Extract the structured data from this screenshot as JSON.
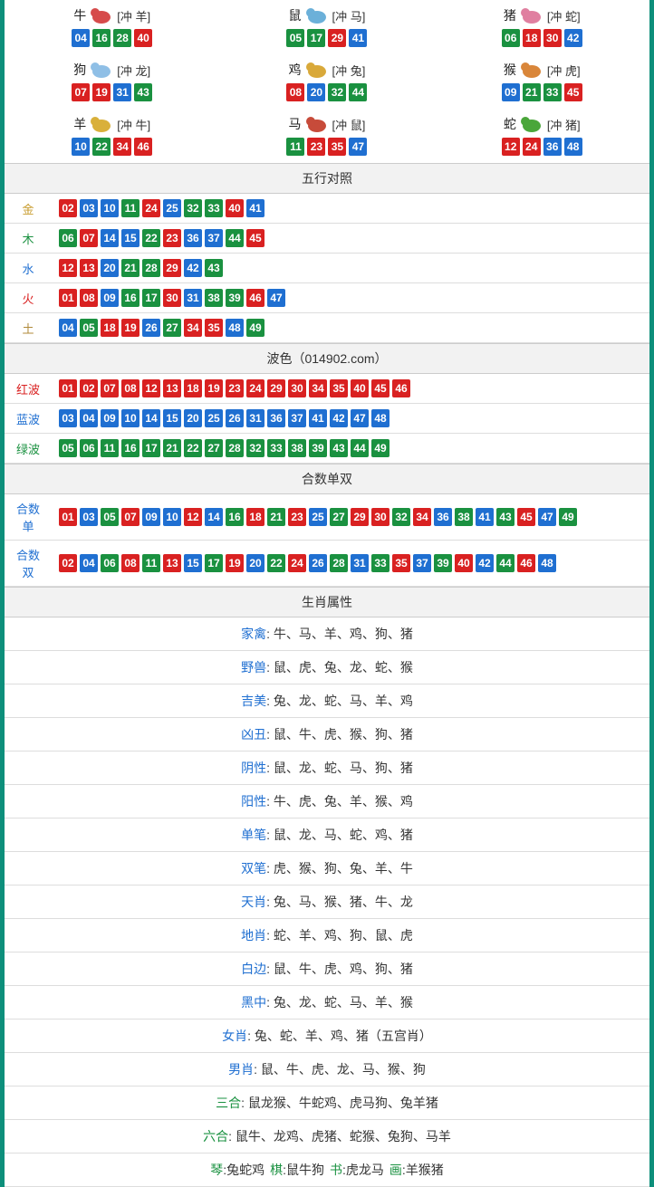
{
  "colors": {
    "red": "#d92121",
    "blue": "#1f6fd1",
    "green": "#1a9140",
    "header_bg": "#f2f2f2",
    "border": "#ccc",
    "page_border": "#0d8f7b"
  },
  "zodiac": [
    {
      "name": "牛",
      "clash": "[冲 羊]",
      "icon_color": "#d64b4b",
      "nums": [
        {
          "v": "04",
          "c": "blue"
        },
        {
          "v": "16",
          "c": "green"
        },
        {
          "v": "28",
          "c": "green"
        },
        {
          "v": "40",
          "c": "red"
        }
      ]
    },
    {
      "name": "鼠",
      "clash": "[冲 马]",
      "icon_color": "#6bb0d9",
      "nums": [
        {
          "v": "05",
          "c": "green"
        },
        {
          "v": "17",
          "c": "green"
        },
        {
          "v": "29",
          "c": "red"
        },
        {
          "v": "41",
          "c": "blue"
        }
      ]
    },
    {
      "name": "猪",
      "clash": "[冲 蛇]",
      "icon_color": "#e07fa0",
      "nums": [
        {
          "v": "06",
          "c": "green"
        },
        {
          "v": "18",
          "c": "red"
        },
        {
          "v": "30",
          "c": "red"
        },
        {
          "v": "42",
          "c": "blue"
        }
      ]
    },
    {
      "name": "狗",
      "clash": "[冲 龙]",
      "icon_color": "#8fbfe6",
      "nums": [
        {
          "v": "07",
          "c": "red"
        },
        {
          "v": "19",
          "c": "red"
        },
        {
          "v": "31",
          "c": "blue"
        },
        {
          "v": "43",
          "c": "green"
        }
      ]
    },
    {
      "name": "鸡",
      "clash": "[冲 兔]",
      "icon_color": "#d9a93a",
      "nums": [
        {
          "v": "08",
          "c": "red"
        },
        {
          "v": "20",
          "c": "blue"
        },
        {
          "v": "32",
          "c": "green"
        },
        {
          "v": "44",
          "c": "green"
        }
      ]
    },
    {
      "name": "猴",
      "clash": "[冲 虎]",
      "icon_color": "#d9863a",
      "nums": [
        {
          "v": "09",
          "c": "blue"
        },
        {
          "v": "21",
          "c": "green"
        },
        {
          "v": "33",
          "c": "green"
        },
        {
          "v": "45",
          "c": "red"
        }
      ]
    },
    {
      "name": "羊",
      "clash": "[冲 牛]",
      "icon_color": "#d9b03a",
      "nums": [
        {
          "v": "10",
          "c": "blue"
        },
        {
          "v": "22",
          "c": "green"
        },
        {
          "v": "34",
          "c": "red"
        },
        {
          "v": "46",
          "c": "red"
        }
      ]
    },
    {
      "name": "马",
      "clash": "[冲 鼠]",
      "icon_color": "#c74b3a",
      "nums": [
        {
          "v": "11",
          "c": "green"
        },
        {
          "v": "23",
          "c": "red"
        },
        {
          "v": "35",
          "c": "red"
        },
        {
          "v": "47",
          "c": "blue"
        }
      ]
    },
    {
      "name": "蛇",
      "clash": "[冲 猪]",
      "icon_color": "#4aa63a",
      "nums": [
        {
          "v": "12",
          "c": "red"
        },
        {
          "v": "24",
          "c": "red"
        },
        {
          "v": "36",
          "c": "blue"
        },
        {
          "v": "48",
          "c": "blue"
        }
      ]
    }
  ],
  "wuxing_header": "五行对照",
  "wuxing": [
    {
      "id": "gold",
      "label": "金",
      "label_class": "lbl-gold",
      "nums": [
        {
          "v": "02",
          "c": "red"
        },
        {
          "v": "03",
          "c": "blue"
        },
        {
          "v": "10",
          "c": "blue"
        },
        {
          "v": "11",
          "c": "green"
        },
        {
          "v": "24",
          "c": "red"
        },
        {
          "v": "25",
          "c": "blue"
        },
        {
          "v": "32",
          "c": "green"
        },
        {
          "v": "33",
          "c": "green"
        },
        {
          "v": "40",
          "c": "red"
        },
        {
          "v": "41",
          "c": "blue"
        }
      ]
    },
    {
      "id": "wood",
      "label": "木",
      "label_class": "lbl-wood",
      "nums": [
        {
          "v": "06",
          "c": "green"
        },
        {
          "v": "07",
          "c": "red"
        },
        {
          "v": "14",
          "c": "blue"
        },
        {
          "v": "15",
          "c": "blue"
        },
        {
          "v": "22",
          "c": "green"
        },
        {
          "v": "23",
          "c": "red"
        },
        {
          "v": "36",
          "c": "blue"
        },
        {
          "v": "37",
          "c": "blue"
        },
        {
          "v": "44",
          "c": "green"
        },
        {
          "v": "45",
          "c": "red"
        }
      ]
    },
    {
      "id": "water",
      "label": "水",
      "label_class": "lbl-water",
      "nums": [
        {
          "v": "12",
          "c": "red"
        },
        {
          "v": "13",
          "c": "red"
        },
        {
          "v": "20",
          "c": "blue"
        },
        {
          "v": "21",
          "c": "green"
        },
        {
          "v": "28",
          "c": "green"
        },
        {
          "v": "29",
          "c": "red"
        },
        {
          "v": "42",
          "c": "blue"
        },
        {
          "v": "43",
          "c": "green"
        }
      ]
    },
    {
      "id": "fire",
      "label": "火",
      "label_class": "lbl-fire",
      "nums": [
        {
          "v": "01",
          "c": "red"
        },
        {
          "v": "08",
          "c": "red"
        },
        {
          "v": "09",
          "c": "blue"
        },
        {
          "v": "16",
          "c": "green"
        },
        {
          "v": "17",
          "c": "green"
        },
        {
          "v": "30",
          "c": "red"
        },
        {
          "v": "31",
          "c": "blue"
        },
        {
          "v": "38",
          "c": "green"
        },
        {
          "v": "39",
          "c": "green"
        },
        {
          "v": "46",
          "c": "red"
        },
        {
          "v": "47",
          "c": "blue"
        }
      ]
    },
    {
      "id": "earth",
      "label": "土",
      "label_class": "lbl-earth",
      "nums": [
        {
          "v": "04",
          "c": "blue"
        },
        {
          "v": "05",
          "c": "green"
        },
        {
          "v": "18",
          "c": "red"
        },
        {
          "v": "19",
          "c": "red"
        },
        {
          "v": "26",
          "c": "blue"
        },
        {
          "v": "27",
          "c": "green"
        },
        {
          "v": "34",
          "c": "red"
        },
        {
          "v": "35",
          "c": "red"
        },
        {
          "v": "48",
          "c": "blue"
        },
        {
          "v": "49",
          "c": "green"
        }
      ]
    }
  ],
  "bose_header": "波色（014902.com）",
  "bose": [
    {
      "id": "red",
      "label": "红波",
      "label_class": "lbl-red",
      "nums": [
        {
          "v": "01",
          "c": "red"
        },
        {
          "v": "02",
          "c": "red"
        },
        {
          "v": "07",
          "c": "red"
        },
        {
          "v": "08",
          "c": "red"
        },
        {
          "v": "12",
          "c": "red"
        },
        {
          "v": "13",
          "c": "red"
        },
        {
          "v": "18",
          "c": "red"
        },
        {
          "v": "19",
          "c": "red"
        },
        {
          "v": "23",
          "c": "red"
        },
        {
          "v": "24",
          "c": "red"
        },
        {
          "v": "29",
          "c": "red"
        },
        {
          "v": "30",
          "c": "red"
        },
        {
          "v": "34",
          "c": "red"
        },
        {
          "v": "35",
          "c": "red"
        },
        {
          "v": "40",
          "c": "red"
        },
        {
          "v": "45",
          "c": "red"
        },
        {
          "v": "46",
          "c": "red"
        }
      ]
    },
    {
      "id": "blue",
      "label": "蓝波",
      "label_class": "lbl-blue",
      "nums": [
        {
          "v": "03",
          "c": "blue"
        },
        {
          "v": "04",
          "c": "blue"
        },
        {
          "v": "09",
          "c": "blue"
        },
        {
          "v": "10",
          "c": "blue"
        },
        {
          "v": "14",
          "c": "blue"
        },
        {
          "v": "15",
          "c": "blue"
        },
        {
          "v": "20",
          "c": "blue"
        },
        {
          "v": "25",
          "c": "blue"
        },
        {
          "v": "26",
          "c": "blue"
        },
        {
          "v": "31",
          "c": "blue"
        },
        {
          "v": "36",
          "c": "blue"
        },
        {
          "v": "37",
          "c": "blue"
        },
        {
          "v": "41",
          "c": "blue"
        },
        {
          "v": "42",
          "c": "blue"
        },
        {
          "v": "47",
          "c": "blue"
        },
        {
          "v": "48",
          "c": "blue"
        }
      ]
    },
    {
      "id": "green",
      "label": "绿波",
      "label_class": "lbl-green",
      "nums": [
        {
          "v": "05",
          "c": "green"
        },
        {
          "v": "06",
          "c": "green"
        },
        {
          "v": "11",
          "c": "green"
        },
        {
          "v": "16",
          "c": "green"
        },
        {
          "v": "17",
          "c": "green"
        },
        {
          "v": "21",
          "c": "green"
        },
        {
          "v": "22",
          "c": "green"
        },
        {
          "v": "27",
          "c": "green"
        },
        {
          "v": "28",
          "c": "green"
        },
        {
          "v": "32",
          "c": "green"
        },
        {
          "v": "33",
          "c": "green"
        },
        {
          "v": "38",
          "c": "green"
        },
        {
          "v": "39",
          "c": "green"
        },
        {
          "v": "43",
          "c": "green"
        },
        {
          "v": "44",
          "c": "green"
        },
        {
          "v": "49",
          "c": "green"
        }
      ]
    }
  ],
  "heshu_header": "合数单双",
  "heshu": [
    {
      "id": "odd",
      "label": "合数单",
      "label_class": "lbl-blue",
      "nums": [
        {
          "v": "01",
          "c": "red"
        },
        {
          "v": "03",
          "c": "blue"
        },
        {
          "v": "05",
          "c": "green"
        },
        {
          "v": "07",
          "c": "red"
        },
        {
          "v": "09",
          "c": "blue"
        },
        {
          "v": "10",
          "c": "blue"
        },
        {
          "v": "12",
          "c": "red"
        },
        {
          "v": "14",
          "c": "blue"
        },
        {
          "v": "16",
          "c": "green"
        },
        {
          "v": "18",
          "c": "red"
        },
        {
          "v": "21",
          "c": "green"
        },
        {
          "v": "23",
          "c": "red"
        },
        {
          "v": "25",
          "c": "blue"
        },
        {
          "v": "27",
          "c": "green"
        },
        {
          "v": "29",
          "c": "red"
        },
        {
          "v": "30",
          "c": "red"
        },
        {
          "v": "32",
          "c": "green"
        },
        {
          "v": "34",
          "c": "red"
        },
        {
          "v": "36",
          "c": "blue"
        },
        {
          "v": "38",
          "c": "green"
        },
        {
          "v": "41",
          "c": "blue"
        },
        {
          "v": "43",
          "c": "green"
        },
        {
          "v": "45",
          "c": "red"
        },
        {
          "v": "47",
          "c": "blue"
        },
        {
          "v": "49",
          "c": "green"
        }
      ]
    },
    {
      "id": "even",
      "label": "合数双",
      "label_class": "lbl-blue",
      "nums": [
        {
          "v": "02",
          "c": "red"
        },
        {
          "v": "04",
          "c": "blue"
        },
        {
          "v": "06",
          "c": "green"
        },
        {
          "v": "08",
          "c": "red"
        },
        {
          "v": "11",
          "c": "green"
        },
        {
          "v": "13",
          "c": "red"
        },
        {
          "v": "15",
          "c": "blue"
        },
        {
          "v": "17",
          "c": "green"
        },
        {
          "v": "19",
          "c": "red"
        },
        {
          "v": "20",
          "c": "blue"
        },
        {
          "v": "22",
          "c": "green"
        },
        {
          "v": "24",
          "c": "red"
        },
        {
          "v": "26",
          "c": "blue"
        },
        {
          "v": "28",
          "c": "green"
        },
        {
          "v": "31",
          "c": "blue"
        },
        {
          "v": "33",
          "c": "green"
        },
        {
          "v": "35",
          "c": "red"
        },
        {
          "v": "37",
          "c": "blue"
        },
        {
          "v": "39",
          "c": "green"
        },
        {
          "v": "40",
          "c": "red"
        },
        {
          "v": "42",
          "c": "blue"
        },
        {
          "v": "44",
          "c": "green"
        },
        {
          "v": "46",
          "c": "red"
        },
        {
          "v": "48",
          "c": "blue"
        }
      ]
    }
  ],
  "shengxiao_header": "生肖属性",
  "attrs": [
    {
      "label": "家禽",
      "value": "牛、马、羊、鸡、狗、猪",
      "cls": ""
    },
    {
      "label": "野兽",
      "value": "鼠、虎、兔、龙、蛇、猴",
      "cls": ""
    },
    {
      "label": "吉美",
      "value": "兔、龙、蛇、马、羊、鸡",
      "cls": ""
    },
    {
      "label": "凶丑",
      "value": "鼠、牛、虎、猴、狗、猪",
      "cls": ""
    },
    {
      "label": "阴性",
      "value": "鼠、龙、蛇、马、狗、猪",
      "cls": ""
    },
    {
      "label": "阳性",
      "value": "牛、虎、兔、羊、猴、鸡",
      "cls": ""
    },
    {
      "label": "单笔",
      "value": "鼠、龙、马、蛇、鸡、猪",
      "cls": ""
    },
    {
      "label": "双笔",
      "value": "虎、猴、狗、兔、羊、牛",
      "cls": ""
    },
    {
      "label": "天肖",
      "value": "兔、马、猴、猪、牛、龙",
      "cls": ""
    },
    {
      "label": "地肖",
      "value": "蛇、羊、鸡、狗、鼠、虎",
      "cls": ""
    },
    {
      "label": "白边",
      "value": "鼠、牛、虎、鸡、狗、猪",
      "cls": ""
    },
    {
      "label": "黑中",
      "value": "兔、龙、蛇、马、羊、猴",
      "cls": ""
    },
    {
      "label": "女肖",
      "value": "兔、蛇、羊、鸡、猪（五宫肖）",
      "cls": ""
    },
    {
      "label": "男肖",
      "value": "鼠、牛、虎、龙、马、猴、狗",
      "cls": ""
    },
    {
      "label": "三合",
      "value": "鼠龙猴、牛蛇鸡、虎马狗、兔羊猪",
      "cls": "green"
    },
    {
      "label": "六合",
      "value": "鼠牛、龙鸡、虎猪、蛇猴、兔狗、马羊",
      "cls": "green"
    }
  ],
  "multi_bottom": [
    {
      "label": "琴",
      "value": "兔蛇鸡"
    },
    {
      "label": "棋",
      "value": "鼠牛狗"
    },
    {
      "label": "书",
      "value": "虎龙马"
    },
    {
      "label": "画",
      "value": "羊猴猪"
    }
  ]
}
